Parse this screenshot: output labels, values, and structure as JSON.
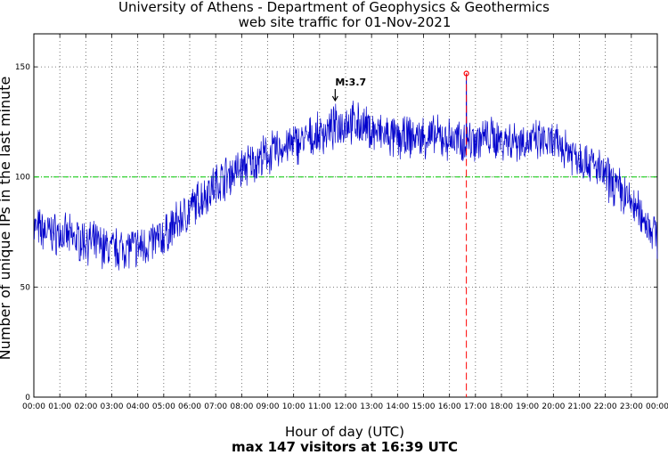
{
  "chart_data": {
    "type": "line",
    "title": "University of Athens - Department of Geophysics & Geothermics",
    "subtitle": "web site traffic for 01-Nov-2021",
    "xlabel": "Hour of day (UTC)",
    "ylabel": "Number of unique IPs in the last minute",
    "footer": "max 147 visitors at 16:39 UTC",
    "xlim": [
      0,
      24
    ],
    "ylim": [
      0,
      165
    ],
    "x_tick_labels": [
      "00:00",
      "01:00",
      "02:00",
      "03:00",
      "04:00",
      "05:00",
      "06:00",
      "07:00",
      "08:00",
      "09:00",
      "10:00",
      "11:00",
      "12:00",
      "13:00",
      "14:00",
      "15:00",
      "16:00",
      "17:00",
      "18:00",
      "19:00",
      "20:00",
      "21:00",
      "22:00",
      "23:00",
      "00:00"
    ],
    "y_ticks": [
      0,
      50,
      100,
      150
    ],
    "y_tick_labels": [
      "0",
      "50",
      "100",
      "150"
    ],
    "grid": true,
    "series": [
      {
        "color": "#0000cc",
        "hourly_values": [
          [
            0,
            77
          ],
          [
            0.5,
            75
          ],
          [
            1,
            74
          ],
          [
            1.5,
            72
          ],
          [
            2,
            71
          ],
          [
            2.5,
            69
          ],
          [
            3,
            67
          ],
          [
            3.5,
            68
          ],
          [
            4,
            68
          ],
          [
            4.5,
            70
          ],
          [
            5,
            73
          ],
          [
            5.5,
            79
          ],
          [
            6,
            85
          ],
          [
            6.5,
            91
          ],
          [
            7,
            97
          ],
          [
            7.5,
            101
          ],
          [
            8,
            104
          ],
          [
            8.5,
            107
          ],
          [
            9,
            110
          ],
          [
            9.5,
            113
          ],
          [
            10,
            115
          ],
          [
            10.5,
            117
          ],
          [
            11,
            119
          ],
          [
            11.5,
            122
          ],
          [
            12,
            125
          ],
          [
            12.5,
            124
          ],
          [
            13,
            121
          ],
          [
            13.5,
            119
          ],
          [
            14,
            117
          ],
          [
            14.5,
            118
          ],
          [
            15,
            118
          ],
          [
            15.5,
            118
          ],
          [
            16,
            117
          ],
          [
            16.5,
            116
          ],
          [
            17,
            117
          ],
          [
            17.5,
            118
          ],
          [
            18,
            117
          ],
          [
            18.5,
            117
          ],
          [
            19,
            116
          ],
          [
            19.5,
            116
          ],
          [
            20,
            115
          ],
          [
            20.5,
            113
          ],
          [
            21,
            109
          ],
          [
            21.5,
            106
          ],
          [
            22,
            100
          ],
          [
            22.5,
            95
          ],
          [
            23,
            88
          ],
          [
            23.5,
            81
          ],
          [
            24,
            73
          ]
        ]
      }
    ],
    "reference_line": {
      "y": 100,
      "color": "#00cc00",
      "style": "dash-dot"
    },
    "max_marker": {
      "x": 16.65,
      "y": 147,
      "color": "#ff0000",
      "style": "dashed"
    },
    "annotation": {
      "text": "M:3.7",
      "x": 11.6,
      "arrow": "down"
    }
  }
}
